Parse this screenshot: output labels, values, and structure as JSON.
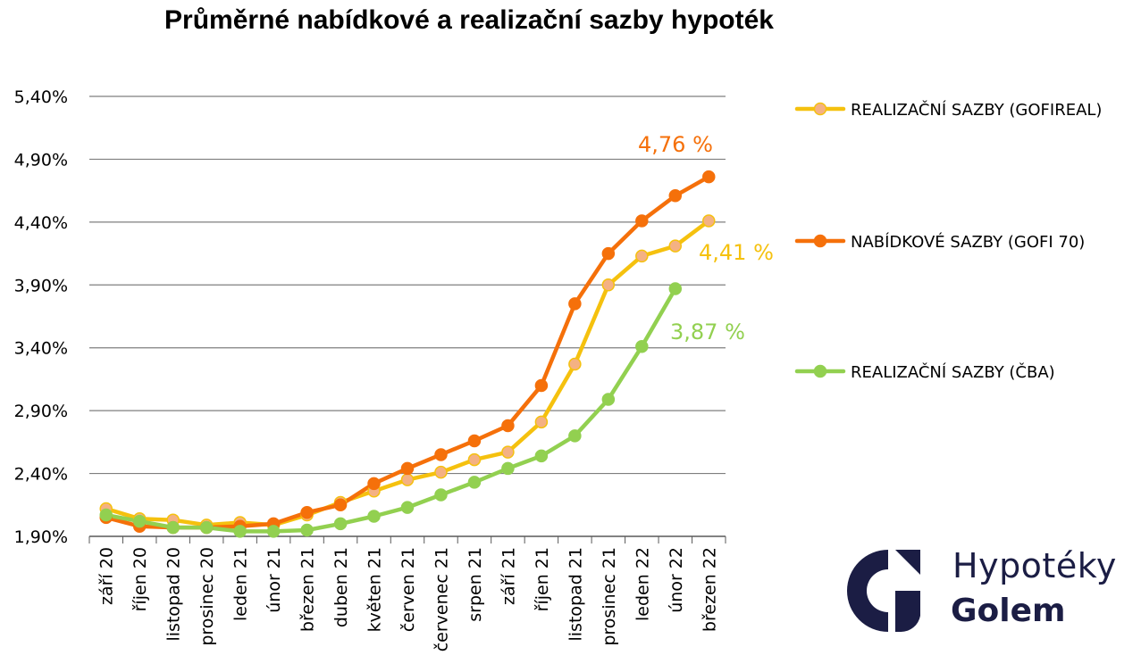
{
  "title": "Průměrné nabídkové a realizační sazby hypoték",
  "logo": {
    "line1": "Hypotéky",
    "line2": "Golem",
    "color": "#1b1d44"
  },
  "chart_data": {
    "type": "line",
    "title": "Průměrné nabídkové a realizační sazby hypoték",
    "categories": [
      "září 20",
      "říjen 20",
      "listopad 20",
      "prosinec 20",
      "leden 21",
      "únor 21",
      "březen 21",
      "duben 21",
      "květen 21",
      "červen 21",
      "červenec 21",
      "srpen 21",
      "září 21",
      "říjen 21",
      "listopad 21",
      "prosinec 21",
      "leden 22",
      "únor 22",
      "březen 22"
    ],
    "y_ticks": [
      "5,40%",
      "4,90%",
      "4,40%",
      "3,90%",
      "3,40%",
      "2,90%",
      "2,40%",
      "1,90%"
    ],
    "ylim": [
      1.9,
      5.4
    ],
    "grid": true,
    "legend_position": "right",
    "series": [
      {
        "name": "REALIZAČNÍ SAZBY (GOFIREAL)",
        "color": "#f5c10e",
        "marker_color": "#f4b183",
        "values": [
          2.12,
          2.04,
          2.03,
          1.99,
          2.01,
          1.99,
          2.07,
          2.17,
          2.26,
          2.35,
          2.41,
          2.51,
          2.57,
          2.81,
          3.27,
          3.9,
          4.13,
          4.21,
          4.41
        ],
        "end_label": "4,41 %"
      },
      {
        "name": "NABÍDKOVÉ SAZBY (GOFI 70)",
        "color": "#f5700a",
        "marker_color": "#f5700a",
        "values": [
          2.05,
          1.98,
          1.97,
          1.97,
          1.98,
          2.0,
          2.09,
          2.15,
          2.32,
          2.44,
          2.55,
          2.66,
          2.78,
          3.1,
          3.75,
          4.15,
          4.41,
          4.61,
          4.76
        ],
        "end_label": "4,76 %"
      },
      {
        "name": "REALIZAČNÍ SAZBY (ČBA)",
        "color": "#92d050",
        "marker_color": "#92d050",
        "values": [
          2.07,
          2.02,
          1.97,
          1.97,
          1.94,
          1.94,
          1.95,
          2.0,
          2.06,
          2.13,
          2.23,
          2.33,
          2.44,
          2.54,
          2.7,
          2.99,
          3.41,
          3.87,
          null
        ],
        "end_label": "3,87 %"
      }
    ]
  }
}
